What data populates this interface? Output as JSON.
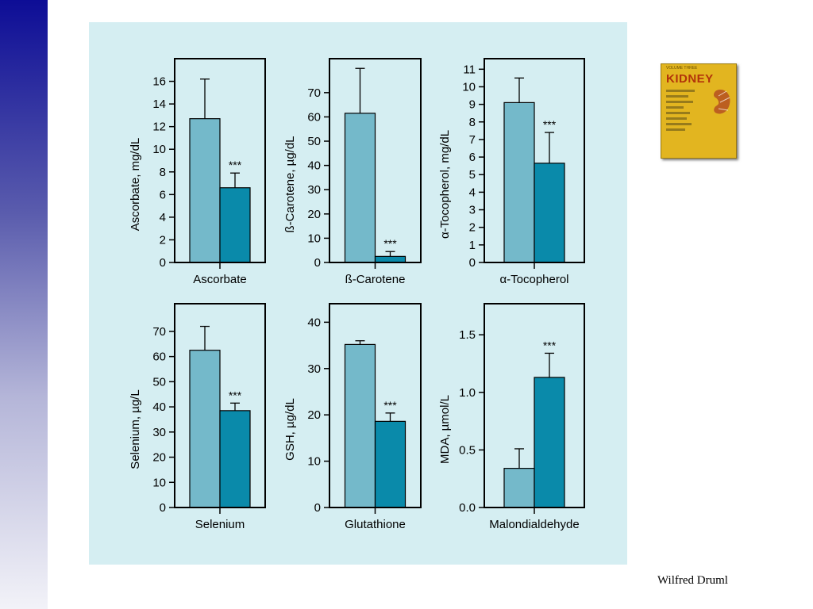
{
  "footer": {
    "credit": "Wilfred Druml"
  },
  "book_cover": {
    "volume": "VOLUME THREE",
    "title": "KIDNEY"
  },
  "colors": {
    "panel_bg": "#d5eef2",
    "control_bar": "#74b9ca",
    "patient_bar": "#0a8aaa",
    "side_bar_top": "#0d0d96"
  },
  "chart_data": [
    {
      "type": "bar",
      "xlabel": "Ascorbate",
      "ylabel": "Ascorbate, mg/dL",
      "ylim": [
        0,
        18
      ],
      "yticks": [
        0,
        2,
        4,
        6,
        8,
        10,
        12,
        14,
        16
      ],
      "bars": [
        {
          "value": 12.7,
          "err": 3.5,
          "sig": ""
        },
        {
          "value": 6.6,
          "err": 1.3,
          "sig": "***"
        }
      ]
    },
    {
      "type": "bar",
      "xlabel": "ß-Carotene",
      "ylabel": "ß-Carotene, µg/dL",
      "ylim": [
        0,
        84
      ],
      "yticks": [
        0,
        10,
        20,
        30,
        40,
        50,
        60,
        70
      ],
      "bars": [
        {
          "value": 61.5,
          "err": 18.5,
          "sig": ""
        },
        {
          "value": 2.5,
          "err": 2,
          "sig": "***"
        }
      ]
    },
    {
      "type": "bar",
      "xlabel": "α-Tocopherol",
      "ylabel": "α-Tocopherol, mg/dL",
      "ylim": [
        0,
        11.6
      ],
      "yticks": [
        0,
        1,
        2,
        3,
        4,
        5,
        6,
        7,
        8,
        9,
        10,
        11
      ],
      "bars": [
        {
          "value": 9.1,
          "err": 1.4,
          "sig": ""
        },
        {
          "value": 5.65,
          "err": 1.75,
          "sig": "***"
        }
      ]
    },
    {
      "type": "bar",
      "xlabel": "Selenium",
      "ylabel": "Selenium, µg/L",
      "ylim": [
        0,
        81
      ],
      "yticks": [
        0,
        10,
        20,
        30,
        40,
        50,
        60,
        70
      ],
      "bars": [
        {
          "value": 62.5,
          "err": 9.5,
          "sig": ""
        },
        {
          "value": 38.5,
          "err": 3,
          "sig": "***"
        }
      ]
    },
    {
      "type": "bar",
      "xlabel": "Glutathione",
      "ylabel": "GSH, µg/dL",
      "ylim": [
        0,
        44
      ],
      "yticks": [
        0,
        10,
        20,
        30,
        40
      ],
      "bars": [
        {
          "value": 35.2,
          "err": 0.8,
          "sig": ""
        },
        {
          "value": 18.6,
          "err": 1.8,
          "sig": "***"
        }
      ]
    },
    {
      "type": "bar",
      "xlabel": "Malondialdehyde",
      "ylabel": "MDA, µmol/L",
      "ylim": [
        0,
        1.77
      ],
      "yticks": [
        0.0,
        0.5,
        1.0,
        1.5
      ],
      "tick_labels": [
        "0.0",
        "0.5",
        "1.0",
        "1.5"
      ],
      "bars": [
        {
          "value": 0.34,
          "err": 0.17,
          "sig": ""
        },
        {
          "value": 1.13,
          "err": 0.21,
          "sig": "***"
        }
      ]
    }
  ]
}
